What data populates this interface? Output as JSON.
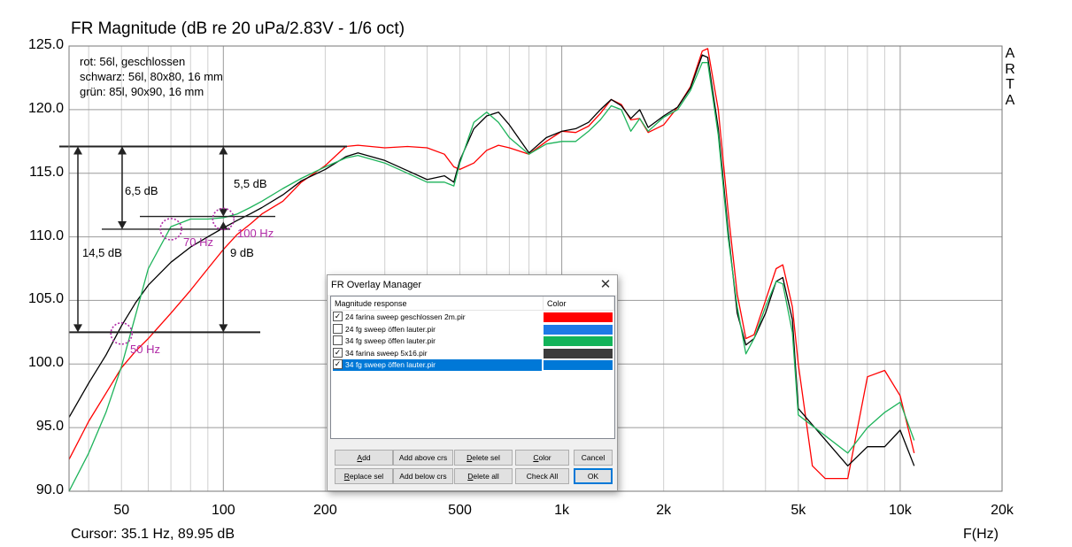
{
  "chart_data": {
    "type": "line",
    "title": "FR Magnitude (dB re 20 uPa/2.83V - 1/6 oct)",
    "xlabel": "F(Hz)",
    "ylabel": "",
    "x_scale": "log",
    "xlim": [
      35,
      20000
    ],
    "ylim": [
      90,
      125
    ],
    "x_ticks": [
      {
        "value": 50,
        "label": "50"
      },
      {
        "value": 100,
        "label": "100"
      },
      {
        "value": 200,
        "label": "200"
      },
      {
        "value": 500,
        "label": "500"
      },
      {
        "value": 1000,
        "label": "1k"
      },
      {
        "value": 2000,
        "label": "2k"
      },
      {
        "value": 5000,
        "label": "5k"
      },
      {
        "value": 10000,
        "label": "10k"
      },
      {
        "value": 20000,
        "label": "20k"
      }
    ],
    "y_ticks": [
      "125.0",
      "120.0",
      "115.0",
      "110.0",
      "105.0",
      "100.0",
      "95.0",
      "90.0"
    ],
    "grid": true,
    "series": [
      {
        "name": "rot: 56l, geschlossen",
        "color": "#ff0000",
        "x": [
          35,
          40,
          45,
          50,
          55,
          60,
          70,
          80,
          90,
          100,
          110,
          120,
          130,
          150,
          170,
          200,
          230,
          250,
          300,
          350,
          400,
          450,
          480,
          500,
          550,
          600,
          650,
          700,
          800,
          900,
          1000,
          1100,
          1200,
          1300,
          1400,
          1500,
          1600,
          1700,
          1800,
          2000,
          2200,
          2400,
          2600,
          2700,
          2900,
          3100,
          3300,
          3500,
          3700,
          4000,
          4300,
          4500,
          4800,
          5000,
          5500,
          6000,
          7000,
          8000,
          9000,
          10000,
          11000
        ],
        "y": [
          92.5,
          95.5,
          97.7,
          99.7,
          101,
          102,
          104,
          105.8,
          107.5,
          109,
          110.2,
          111,
          111.8,
          112.8,
          114.3,
          115.6,
          117.1,
          117.2,
          117,
          117.1,
          117,
          116.5,
          115.5,
          115.3,
          115.8,
          116.8,
          117.2,
          117,
          116.5,
          117.5,
          118.3,
          118.2,
          118.7,
          119.7,
          120.8,
          120.4,
          119.2,
          119.3,
          118.2,
          118.8,
          120.2,
          121.8,
          124.6,
          124.8,
          120,
          112,
          105.5,
          102,
          102.3,
          105,
          107.5,
          107.8,
          104.5,
          100,
          92,
          91,
          91,
          99,
          99.5,
          97.5,
          93
        ]
      },
      {
        "name": "schwarz: 56l, 80x80, 16 mm",
        "color": "#000000",
        "x": [
          35,
          40,
          45,
          50,
          55,
          60,
          70,
          80,
          90,
          100,
          110,
          120,
          130,
          150,
          170,
          200,
          230,
          250,
          300,
          350,
          400,
          450,
          480,
          500,
          550,
          600,
          650,
          700,
          800,
          900,
          1000,
          1100,
          1200,
          1300,
          1400,
          1500,
          1600,
          1700,
          1800,
          2000,
          2200,
          2400,
          2600,
          2700,
          2900,
          3100,
          3300,
          3500,
          3700,
          4000,
          4300,
          4500,
          4800,
          5000,
          7000,
          8000,
          9000,
          10000,
          11000
        ],
        "y": [
          95.8,
          98.5,
          100.7,
          103,
          104.8,
          106.2,
          108,
          109.2,
          110,
          110.7,
          111.3,
          111.8,
          112.3,
          113.3,
          114.4,
          115.3,
          116.3,
          116.6,
          116,
          115.2,
          114.5,
          114.8,
          114.3,
          116,
          118.5,
          119.5,
          119.8,
          118.8,
          116.6,
          117.8,
          118.3,
          118.5,
          119,
          120,
          120.8,
          120.3,
          119.3,
          120,
          118.6,
          119.5,
          120.2,
          121.7,
          124.3,
          124.1,
          118.5,
          110.5,
          104,
          101.5,
          102,
          104,
          106.5,
          106.8,
          103.5,
          96.5,
          92,
          93.5,
          93.5,
          94.8,
          92
        ]
      },
      {
        "name": "grün: 85l, 90x90, 16 mm",
        "color": "#1db35a",
        "x": [
          35,
          40,
          45,
          50,
          55,
          60,
          70,
          80,
          90,
          100,
          110,
          120,
          130,
          150,
          170,
          200,
          230,
          250,
          300,
          350,
          400,
          450,
          480,
          500,
          550,
          600,
          650,
          700,
          800,
          900,
          1000,
          1100,
          1200,
          1300,
          1400,
          1500,
          1600,
          1700,
          1800,
          2000,
          2200,
          2400,
          2600,
          2700,
          2900,
          3100,
          3300,
          3500,
          3700,
          4000,
          4300,
          4500,
          4800,
          5000,
          7000,
          8000,
          9000,
          10000,
          11000
        ],
        "y": [
          90,
          93,
          96.2,
          99.8,
          103.8,
          107.5,
          110.8,
          111.4,
          111.4,
          111.5,
          111.8,
          112.3,
          112.8,
          113.8,
          114.6,
          115.5,
          116.2,
          116.4,
          115.8,
          115,
          114.3,
          114.3,
          114,
          115.8,
          119,
          119.8,
          119,
          117.8,
          116.5,
          117.3,
          117.5,
          117.5,
          118.3,
          119.2,
          120.3,
          120,
          118.3,
          119.3,
          118.3,
          119.4,
          120,
          121.5,
          123.7,
          123.7,
          118,
          110,
          104.5,
          100.8,
          102,
          104.5,
          106.5,
          106.3,
          102.5,
          96,
          93,
          95,
          96.2,
          97,
          94
        ]
      }
    ]
  },
  "arta_letters": [
    "A",
    "R",
    "T",
    "A"
  ],
  "legend_note": {
    "line1": "rot: 56l, geschlossen",
    "line2": "schwarz: 56l, 80x80, 16 mm",
    "line3": "grün: 85l, 90x90, 16 mm"
  },
  "annotations": {
    "d145": "14,5 dB",
    "d65": "6,5 dB",
    "d55": "5,5 dB",
    "d9": "9 dB",
    "f70": "70 Hz",
    "f100": "100 Hz",
    "f50": "50 Hz"
  },
  "status": {
    "cursor": "Cursor: 35.1 Hz, 89.95 dB"
  },
  "dialog": {
    "title": "FR Overlay Manager",
    "col_name": "Magnitude response",
    "col_color": "Color",
    "rows": [
      {
        "label": "24 farina sweep geschlossen 2m.pir",
        "checked": true,
        "color": "#ff0000",
        "selected": false
      },
      {
        "label": "24 fg sweep öffen lauter.pir",
        "checked": false,
        "color": "#1e7ae6",
        "selected": false
      },
      {
        "label": "34 fg sweep öffen lauter.pir",
        "checked": false,
        "color": "#13b35a",
        "selected": false
      },
      {
        "label": "34 farina sweep 5x16.pir",
        "checked": true,
        "color": "#3c3c3c",
        "selected": false
      },
      {
        "label": "34 fg sweep öffen lauter.pir",
        "checked": true,
        "color": "#0078d7",
        "selected": true
      }
    ],
    "buttons": {
      "add": "Add",
      "add_above": "Add above crs",
      "delete_sel": "Delete sel",
      "color": "Color",
      "cancel": "Cancel",
      "replace_sel": "Replace sel",
      "add_below": "Add below crs",
      "delete_all": "Delete all",
      "check_all": "Check All",
      "ok": "OK"
    }
  }
}
